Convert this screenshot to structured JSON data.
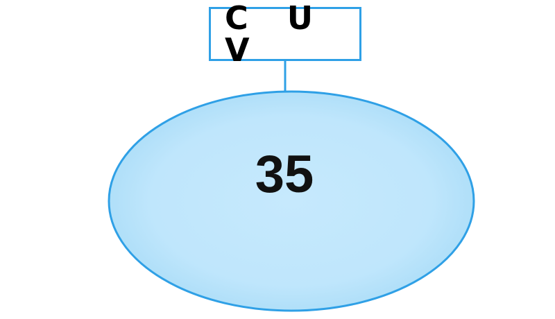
{
  "diagram": {
    "label": "C U V",
    "value": "35",
    "colors": {
      "stroke": "#2fa0e6",
      "fill_center": "#c6e9fd",
      "fill_edge": "#a9dcf7",
      "text": "#111111"
    }
  }
}
